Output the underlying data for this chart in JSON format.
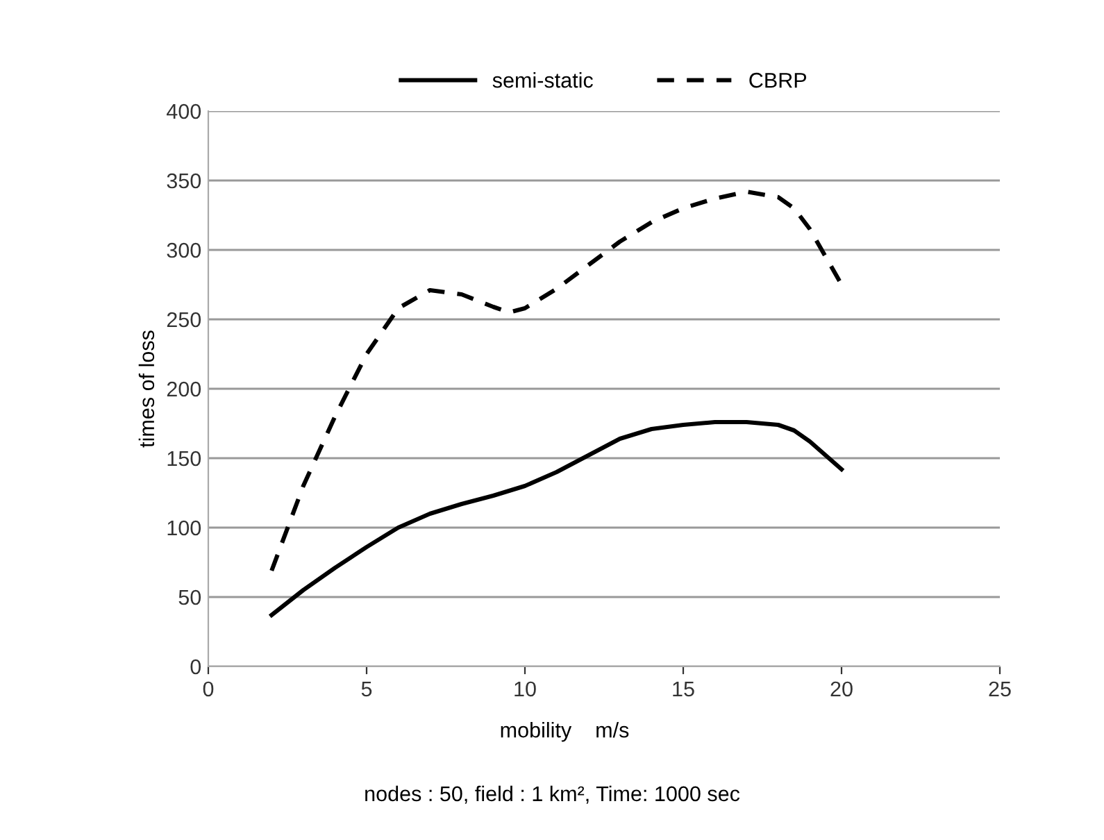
{
  "chart_data": {
    "type": "line",
    "xlabel": "mobility    m/s",
    "ylabel": "times of loss",
    "annotations": [
      "nodes : 50, field : 1 km², Time: 1000 sec"
    ],
    "series": [
      {
        "name": "semi-static",
        "color": "#000000",
        "line_style": "solid",
        "x": [
          2,
          3,
          4,
          5,
          6,
          7,
          8,
          9,
          10,
          11,
          12,
          13,
          14,
          15,
          16,
          17,
          18,
          18.5,
          19,
          20
        ],
        "values": [
          37,
          55,
          71,
          86,
          100,
          110,
          117,
          123,
          130,
          140,
          152,
          164,
          171,
          174,
          176,
          176,
          174,
          170,
          162,
          142
        ]
      },
      {
        "name": "CBRP",
        "color": "#000000",
        "line_style": "dashed",
        "x": [
          2,
          3,
          4,
          5,
          6,
          7,
          8,
          9,
          9.5,
          10,
          11,
          12,
          13,
          14,
          15,
          16,
          17,
          18,
          18.5,
          19,
          20
        ],
        "values": [
          69,
          130,
          180,
          225,
          258,
          271,
          268,
          259,
          255,
          258,
          272,
          289,
          306,
          320,
          330,
          337,
          342,
          338,
          330,
          315,
          275
        ]
      }
    ],
    "xlim": [
      0,
      25
    ],
    "xticks": [
      0,
      5,
      10,
      15,
      20,
      25
    ],
    "ylim": [
      0,
      400
    ],
    "yticks": [
      0,
      50,
      100,
      150,
      200,
      250,
      300,
      350,
      400
    ],
    "grid": "y",
    "legend": "top",
    "marker": "none"
  }
}
